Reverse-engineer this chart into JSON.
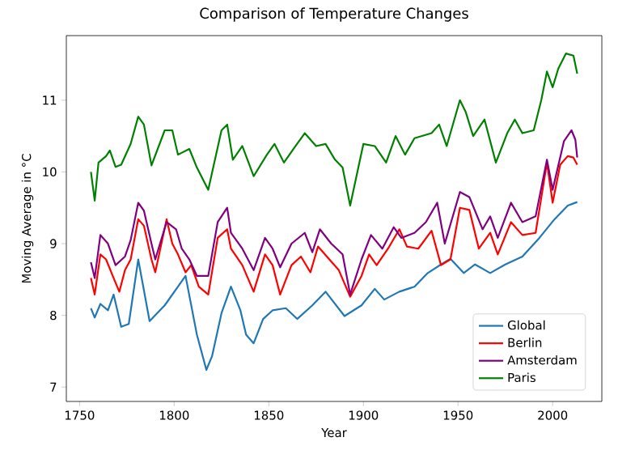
{
  "chart_data": {
    "type": "line",
    "title": "Comparison of Temperature Changes",
    "xlabel": "Year",
    "ylabel": "Moving Average in °C",
    "xlim": [
      1743,
      2026
    ],
    "ylim": [
      6.8,
      11.9
    ],
    "xticks": [
      1750,
      1800,
      1850,
      1900,
      1950,
      2000
    ],
    "yticks": [
      7,
      8,
      9,
      10,
      11
    ],
    "legend": "bottom right",
    "grid": false,
    "series": [
      {
        "name": "Global",
        "color": "#1f77b4",
        "x": [
          1756,
          1758,
          1761,
          1765,
          1768,
          1772,
          1776,
          1781,
          1787,
          1795,
          1802,
          1806,
          1812,
          1817,
          1820,
          1825,
          1830,
          1835,
          1838,
          1842,
          1847,
          1852,
          1859,
          1865,
          1873,
          1880,
          1890,
          1899,
          1906,
          1911,
          1919,
          1927,
          1934,
          1941,
          1946,
          1953,
          1959,
          1967,
          1975,
          1984,
          1993,
          2001,
          2008,
          2013
        ],
        "values": [
          8.1,
          7.97,
          8.16,
          8.07,
          8.29,
          7.84,
          7.88,
          8.78,
          7.92,
          8.14,
          8.4,
          8.55,
          7.73,
          7.24,
          7.43,
          8.03,
          8.4,
          8.07,
          7.73,
          7.61,
          7.95,
          8.07,
          8.1,
          7.95,
          8.14,
          8.33,
          7.99,
          8.14,
          8.37,
          8.22,
          8.33,
          8.4,
          8.59,
          8.71,
          8.79,
          8.59,
          8.71,
          8.59,
          8.71,
          8.82,
          9.08,
          9.34,
          9.53,
          9.58
        ]
      },
      {
        "name": "Berlin",
        "color": "#ff0000",
        "x": [
          1756,
          1758,
          1761,
          1764,
          1768,
          1771,
          1774,
          1777,
          1781,
          1784,
          1788,
          1790,
          1796,
          1799,
          1802,
          1806,
          1809,
          1813,
          1818,
          1823,
          1828,
          1830,
          1836,
          1842,
          1848,
          1852,
          1856,
          1862,
          1867,
          1872,
          1876,
          1882,
          1887,
          1893,
          1899,
          1903,
          1907,
          1913,
          1919,
          1923,
          1929,
          1936,
          1941,
          1946,
          1951,
          1956,
          1961,
          1967,
          1971,
          1978,
          1984,
          1991,
          1997,
          2000,
          2004,
          2008,
          2011,
          2013
        ],
        "values": [
          8.52,
          8.29,
          8.85,
          8.78,
          8.52,
          8.33,
          8.63,
          8.78,
          9.34,
          9.25,
          8.78,
          8.6,
          9.34,
          9.0,
          8.85,
          8.6,
          8.7,
          8.4,
          8.29,
          9.08,
          9.2,
          8.93,
          8.7,
          8.33,
          8.85,
          8.7,
          8.29,
          8.7,
          8.82,
          8.6,
          8.96,
          8.78,
          8.63,
          8.26,
          8.55,
          8.85,
          8.7,
          8.93,
          9.2,
          8.96,
          8.93,
          9.18,
          8.7,
          8.78,
          9.5,
          9.47,
          8.93,
          9.15,
          8.85,
          9.3,
          9.12,
          9.15,
          10.13,
          9.57,
          10.1,
          10.22,
          10.2,
          10.1
        ]
      },
      {
        "name": "Amsterdam",
        "color": "#800080",
        "x": [
          1756,
          1758,
          1761,
          1765,
          1769,
          1774,
          1777,
          1781,
          1784,
          1788,
          1790,
          1796,
          1801,
          1804,
          1808,
          1812,
          1818,
          1823,
          1828,
          1830,
          1836,
          1842,
          1848,
          1852,
          1856,
          1862,
          1869,
          1873,
          1877,
          1883,
          1889,
          1893,
          1899,
          1904,
          1910,
          1916,
          1920,
          1927,
          1933,
          1939,
          1943,
          1951,
          1956,
          1963,
          1967,
          1971,
          1978,
          1984,
          1991,
          1997,
          2000,
          2006,
          2010,
          2012,
          2013
        ],
        "values": [
          8.74,
          8.52,
          9.12,
          9.0,
          8.7,
          8.82,
          9.05,
          9.57,
          9.46,
          9.0,
          8.78,
          9.3,
          9.2,
          8.93,
          8.78,
          8.55,
          8.55,
          9.3,
          9.5,
          9.15,
          8.93,
          8.63,
          9.08,
          8.93,
          8.67,
          9.0,
          9.15,
          8.88,
          9.2,
          9.0,
          8.85,
          8.29,
          8.78,
          9.12,
          8.93,
          9.23,
          9.08,
          9.15,
          9.3,
          9.57,
          9.0,
          9.72,
          9.65,
          9.2,
          9.38,
          9.08,
          9.57,
          9.3,
          9.38,
          10.17,
          9.75,
          10.43,
          10.58,
          10.45,
          10.2
        ]
      },
      {
        "name": "Paris",
        "color": "#008000",
        "x": [
          1756,
          1758,
          1760,
          1764,
          1766,
          1769,
          1772,
          1777,
          1781,
          1784,
          1788,
          1795,
          1799,
          1802,
          1808,
          1812,
          1818,
          1825,
          1828,
          1831,
          1836,
          1842,
          1849,
          1853,
          1858,
          1863,
          1869,
          1875,
          1880,
          1885,
          1889,
          1893,
          1900,
          1906,
          1912,
          1917,
          1922,
          1927,
          1936,
          1940,
          1944,
          1951,
          1954,
          1958,
          1964,
          1970,
          1976,
          1980,
          1984,
          1990,
          1994,
          1997,
          2000,
          2003,
          2007,
          2011,
          2013
        ],
        "values": [
          10.0,
          9.6,
          10.13,
          10.22,
          10.3,
          10.07,
          10.1,
          10.39,
          10.77,
          10.66,
          10.09,
          10.58,
          10.58,
          10.24,
          10.32,
          10.06,
          9.75,
          10.58,
          10.66,
          10.17,
          10.36,
          9.94,
          10.24,
          10.39,
          10.13,
          10.32,
          10.54,
          10.36,
          10.39,
          10.17,
          10.06,
          9.53,
          10.39,
          10.36,
          10.13,
          10.5,
          10.24,
          10.47,
          10.54,
          10.66,
          10.36,
          11.0,
          10.84,
          10.5,
          10.73,
          10.13,
          10.54,
          10.73,
          10.54,
          10.58,
          11.0,
          11.4,
          11.18,
          11.44,
          11.65,
          11.62,
          11.37
        ]
      }
    ]
  }
}
